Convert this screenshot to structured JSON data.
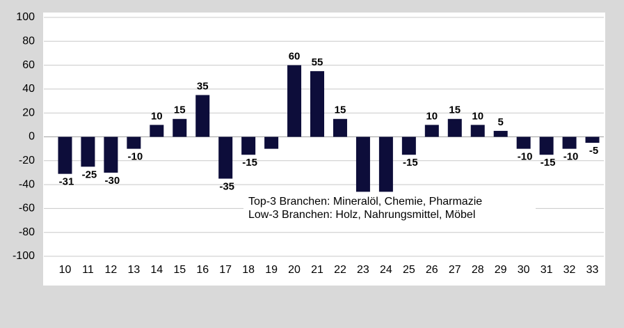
{
  "chart_data": {
    "type": "bar",
    "categories": [
      "10",
      "11",
      "12",
      "13",
      "14",
      "15",
      "16",
      "17",
      "18",
      "19",
      "20",
      "21",
      "22",
      "23",
      "24",
      "25",
      "26",
      "27",
      "28",
      "29",
      "30",
      "31",
      "32",
      "33"
    ],
    "values": [
      -31,
      -25,
      -30,
      -10,
      10,
      15,
      35,
      -35,
      -15,
      -10,
      60,
      55,
      15,
      -46,
      -46,
      -15,
      10,
      15,
      10,
      5,
      -10,
      -15,
      -10,
      -5
    ],
    "value_labels": [
      "-31",
      "-25",
      "-30",
      "-10",
      "10",
      "15",
      "35",
      "-35",
      "-15",
      null,
      "60",
      "55",
      "15",
      null,
      null,
      "-15",
      "10",
      "15",
      "10",
      "5",
      "-10",
      "-15",
      "-10",
      "-5"
    ],
    "color": "#0d0d3a",
    "ylim": [
      -100,
      100
    ],
    "yticks": [
      -100,
      -80,
      -60,
      -40,
      -20,
      0,
      20,
      40,
      60,
      80,
      100
    ],
    "grid": true,
    "annotations": [
      "Top-3 Branchen: Mineralöl, Chemie, Pharmazie",
      "Low-3 Branchen: Holz, Nahrungsmittel, Möbel"
    ]
  }
}
